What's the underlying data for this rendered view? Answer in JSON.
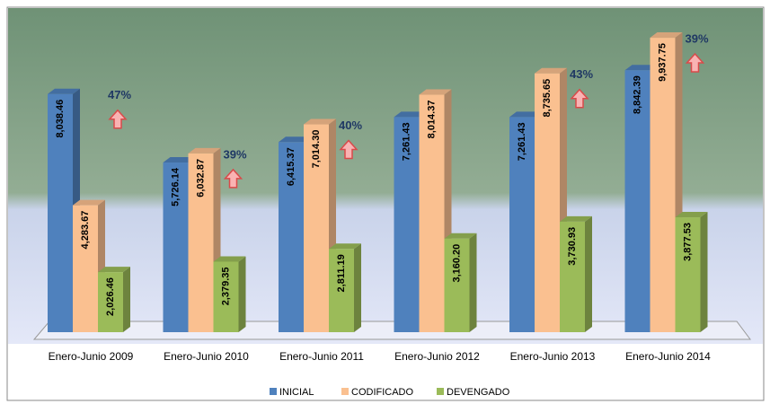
{
  "chart_data": {
    "type": "bar3d",
    "categories": [
      "Enero-Junio 2009",
      "Enero-Junio 2010",
      "Enero-Junio 2011",
      "Enero-Junio 2012",
      "Enero-Junio 2013",
      "Enero-Junio 2014"
    ],
    "series": [
      {
        "name": "INICIAL",
        "color": "#4f81bd",
        "values": [
          8038.46,
          5726.14,
          6415.37,
          7261.43,
          7261.43,
          8842.39
        ],
        "value_labels": [
          "8,038.46",
          "5,726.14",
          "6,415.37",
          "7,261.43",
          "7,261.43",
          "8,842.39"
        ]
      },
      {
        "name": "CODIFICADO",
        "color": "#fac090",
        "values": [
          4283.67,
          6032.87,
          7014.3,
          8014.37,
          8735.65,
          9937.75
        ],
        "value_labels": [
          "4,283.67",
          "6,032.87",
          "7,014.30",
          "8,014.37",
          "8,735.65",
          "9,937.75"
        ]
      },
      {
        "name": "DEVENGADO",
        "color": "#9bbb59",
        "values": [
          2026.46,
          2379.35,
          2811.19,
          3160.2,
          3730.93,
          3877.53
        ],
        "value_labels": [
          "2,026.46",
          "2,379.35",
          "2,811.19",
          "3,160.20",
          "3,730.93",
          "3,877.53"
        ]
      }
    ],
    "annotations": [
      "47%",
      "39%",
      "40%",
      null,
      "43%",
      "39%"
    ],
    "legend": "bottom"
  }
}
